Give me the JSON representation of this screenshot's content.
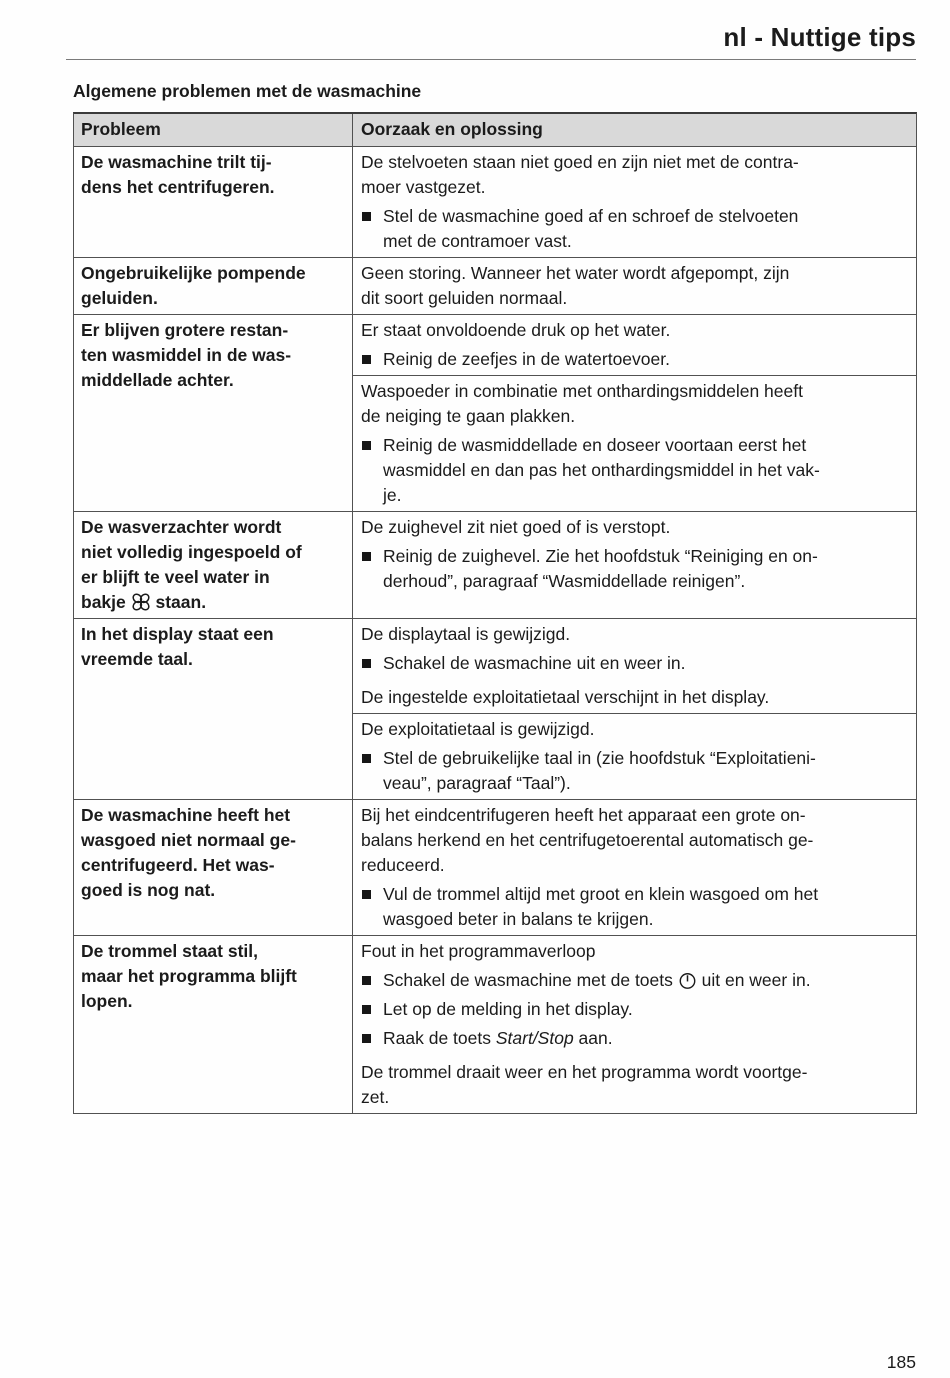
{
  "page": {
    "doc_title": "nl - Nuttige tips",
    "section_title": "Algemene problemen met de wasmachine",
    "page_number": "185"
  },
  "colors": {
    "header_bg": "#d9d9d9",
    "table_border": "#515151",
    "text": "#1b1b1b"
  },
  "icons": {
    "bullet": "square-bullet-icon",
    "softener": "fabric-softener-icon",
    "power": "power-button-icon"
  },
  "table": {
    "headers": [
      "Probleem",
      "Oorzaak en oplossing"
    ],
    "rows": [
      {
        "problem": [
          {
            "t": "text",
            "v": "De wasmachine trilt tij-\ndens het centrifugeren."
          }
        ],
        "cells": [
          {
            "blocks": [
              {
                "type": "para",
                "segs": [
                  {
                    "t": "text",
                    "v": "De stelvoeten staan niet goed en zijn niet met de contra-\nmoer vastgezet."
                  }
                ]
              },
              {
                "type": "bullet",
                "segs": [
                  {
                    "t": "text",
                    "v": "Stel de wasmachine goed af en schroef de stelvoeten\nmet de contramoer vast."
                  }
                ]
              }
            ]
          }
        ]
      },
      {
        "problem": [
          {
            "t": "text",
            "v": "Ongebruikelijke pompende\ngeluiden."
          }
        ],
        "cells": [
          {
            "blocks": [
              {
                "type": "para",
                "segs": [
                  {
                    "t": "text",
                    "v": "Geen storing. Wanneer het water wordt afgepompt, zijn\ndit soort geluiden normaal."
                  }
                ]
              }
            ]
          }
        ]
      },
      {
        "problem": [
          {
            "t": "text",
            "v": "Er blijven grotere restan-\nten wasmiddel in de was-\nmiddellade achter."
          }
        ],
        "cells": [
          {
            "blocks": [
              {
                "type": "para",
                "segs": [
                  {
                    "t": "text",
                    "v": "Er staat onvoldoende druk op het water."
                  }
                ]
              },
              {
                "type": "bullet",
                "segs": [
                  {
                    "t": "text",
                    "v": "Reinig de zeefjes in de watertoevoer."
                  }
                ]
              }
            ]
          },
          {
            "blocks": [
              {
                "type": "para",
                "segs": [
                  {
                    "t": "text",
                    "v": "Waspoeder in combinatie met onthardingsmiddelen heeft\nde neiging te gaan plakken."
                  }
                ]
              },
              {
                "type": "bullet",
                "segs": [
                  {
                    "t": "text",
                    "v": "Reinig de wasmiddellade en doseer voortaan eerst het\nwasmiddel en dan pas het onthardingsmiddel in het vak-\nje."
                  }
                ]
              }
            ]
          }
        ]
      },
      {
        "problem": [
          {
            "t": "text",
            "v": "De wasverzachter wordt\nniet volledig ingespoeld of\ner blijft te veel water in\nbakje "
          },
          {
            "t": "icon",
            "v": "softener",
            "name": "fabric-softener-icon"
          },
          {
            "t": "text",
            "v": " staan."
          }
        ],
        "cells": [
          {
            "blocks": [
              {
                "type": "para",
                "segs": [
                  {
                    "t": "text",
                    "v": "De zuighevel zit niet goed of is verstopt."
                  }
                ]
              },
              {
                "type": "bullet",
                "segs": [
                  {
                    "t": "text",
                    "v": "Reinig de zuighevel. Zie het hoofdstuk “Reiniging en on-\nderhoud”, paragraaf “Wasmiddellade reinigen”."
                  }
                ]
              }
            ]
          }
        ]
      },
      {
        "problem": [
          {
            "t": "text",
            "v": "In het display staat een\nvreemde taal."
          }
        ],
        "cells": [
          {
            "blocks": [
              {
                "type": "para",
                "segs": [
                  {
                    "t": "text",
                    "v": "De displaytaal is gewijzigd."
                  }
                ]
              },
              {
                "type": "bullet",
                "segs": [
                  {
                    "t": "text",
                    "v": "Schakel de wasmachine uit en weer in."
                  }
                ]
              },
              {
                "type": "para",
                "segs": [
                  {
                    "t": "text",
                    "v": "De ingestelde exploitatietaal verschijnt in het display."
                  }
                ]
              }
            ]
          },
          {
            "blocks": [
              {
                "type": "para",
                "segs": [
                  {
                    "t": "text",
                    "v": "De exploitatietaal is gewijzigd."
                  }
                ]
              },
              {
                "type": "bullet",
                "segs": [
                  {
                    "t": "text",
                    "v": "Stel de gebruikelijke taal in (zie hoofdstuk “Exploitatieni-\nveau”, paragraaf “Taal”)."
                  }
                ]
              }
            ]
          }
        ]
      },
      {
        "problem": [
          {
            "t": "text",
            "v": "De wasmachine heeft het\nwasgoed niet normaal ge-\ncentrifugeerd. Het was-\ngoed is nog nat."
          }
        ],
        "cells": [
          {
            "blocks": [
              {
                "type": "para",
                "segs": [
                  {
                    "t": "text",
                    "v": "Bij het eindcentrifugeren heeft het apparaat een grote on-\nbalans herkend en het centrifugetoerental automatisch ge-\nreduceerd."
                  }
                ]
              },
              {
                "type": "bullet",
                "segs": [
                  {
                    "t": "text",
                    "v": "Vul de trommel altijd met groot en klein wasgoed om het\nwasgoed beter in balans te krijgen."
                  }
                ]
              }
            ]
          }
        ]
      },
      {
        "problem": [
          {
            "t": "text",
            "v": "De trommel staat stil,\nmaar het programma blijft\nlopen."
          }
        ],
        "cells": [
          {
            "blocks": [
              {
                "type": "para",
                "segs": [
                  {
                    "t": "text",
                    "v": "Fout in het programmaverloop"
                  }
                ]
              },
              {
                "type": "bullet",
                "segs": [
                  {
                    "t": "text",
                    "v": "Schakel de wasmachine met de toets "
                  },
                  {
                    "t": "icon",
                    "v": "power",
                    "name": "power-button-icon"
                  },
                  {
                    "t": "text",
                    "v": " uit en weer in."
                  }
                ]
              },
              {
                "type": "bullet",
                "segs": [
                  {
                    "t": "text",
                    "v": "Let op de melding in het display."
                  }
                ]
              },
              {
                "type": "bullet",
                "segs": [
                  {
                    "t": "text",
                    "v": "Raak de toets "
                  },
                  {
                    "t": "italic",
                    "v": "Start/Stop"
                  },
                  {
                    "t": "text",
                    "v": " aan."
                  }
                ]
              },
              {
                "type": "para",
                "segs": [
                  {
                    "t": "text",
                    "v": "De trommel draait weer en het programma wordt voortge-\nzet."
                  }
                ]
              }
            ]
          }
        ]
      }
    ]
  }
}
